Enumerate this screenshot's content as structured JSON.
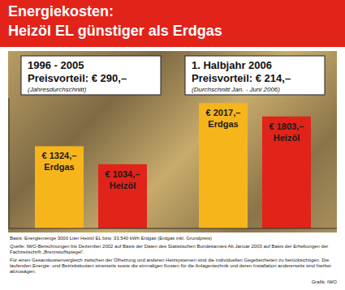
{
  "chart_data": {
    "type": "bar",
    "title": "Energiekosten:",
    "subtitle": "Heizöl EL günstiger als Erdgas",
    "categories": [
      "1996 - 2005",
      "1. Halbjahr 2006"
    ],
    "category_annotations": [
      "Preisvorteil: € 290,–",
      "Preisvorteil: € 214,–"
    ],
    "category_notes": [
      "(Jahresdurchschnitt)",
      "(Durchschnitt Jan. - Juni 2006)"
    ],
    "series": [
      {
        "name": "Erdgas",
        "color": "#f7b51c",
        "values": [
          1324,
          2017
        ],
        "value_labels": [
          "€ 1324,–",
          "€ 2017,–"
        ]
      },
      {
        "name": "Heizöl",
        "color": "#e2231a",
        "values": [
          1034,
          1803
        ],
        "value_labels": [
          "€ 1034,–",
          "€ 1803,–"
        ]
      }
    ],
    "ylim": [
      0,
      2100
    ],
    "tick_labels": false,
    "data_labels": true,
    "grid": false,
    "footnotes": [
      "Basis: Energiemenge 3000 Liter Heizöl EL bzw. 33.540 kWh Erdgas (Erdgas inkl. Grundpreis)",
      "Quelle: IWO-Berechnungen bis Dezember 2002 auf Basis der Daten des Statistischen Bundesamtes Ab Januar 2003 auf Basis der Erhebungen der Fachzeitschrift „Brennstoffspiegel“.",
      "Für einen Gesamtkostenvergleich zwischen der Ölheizung und anderen Heizsystemen sind die individuellen Gegebenheiten zu berücksichtigen. Die laufenden Energie- und Betriebskosten einerseits sowie die einmaligen Kosten für die Anlagentechnik und deren Installation andererseits sind hierbei abzuwägen."
    ],
    "credit": "Grafik: IWO"
  }
}
